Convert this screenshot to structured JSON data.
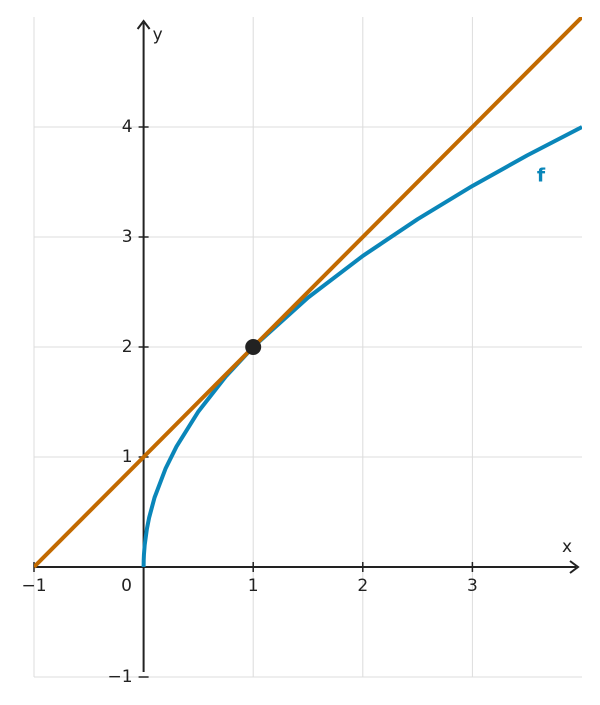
{
  "chart_data": {
    "type": "line",
    "x_label": "x",
    "y_label": "y",
    "xlim": [
      -1,
      4
    ],
    "ylim": [
      -1,
      5
    ],
    "xticks": [
      {
        "value": -1,
        "label": "−1"
      },
      0,
      1,
      2,
      3
    ],
    "yticks": [
      {
        "value": -1,
        "label": "−1"
      },
      1,
      2,
      3,
      4
    ],
    "grid": true,
    "series": [
      {
        "name": "f",
        "color": "#0a86b9",
        "x": [
          0,
          0.001,
          0.003,
          0.01,
          0.03,
          0.05,
          0.1,
          0.2,
          0.3,
          0.5,
          0.75,
          1,
          1.5,
          2,
          2.5,
          3,
          3.5,
          4
        ],
        "values": [
          0,
          0.063,
          0.11,
          0.2,
          0.346,
          0.447,
          0.632,
          0.894,
          1.095,
          1.414,
          1.732,
          2,
          2.449,
          2.828,
          3.162,
          3.464,
          3.742,
          4
        ]
      },
      {
        "color": "#c26a00",
        "x": [
          -1,
          4
        ],
        "values": [
          0,
          5
        ]
      }
    ],
    "point": {
      "x": 1,
      "y": 2,
      "color": "#222"
    }
  }
}
